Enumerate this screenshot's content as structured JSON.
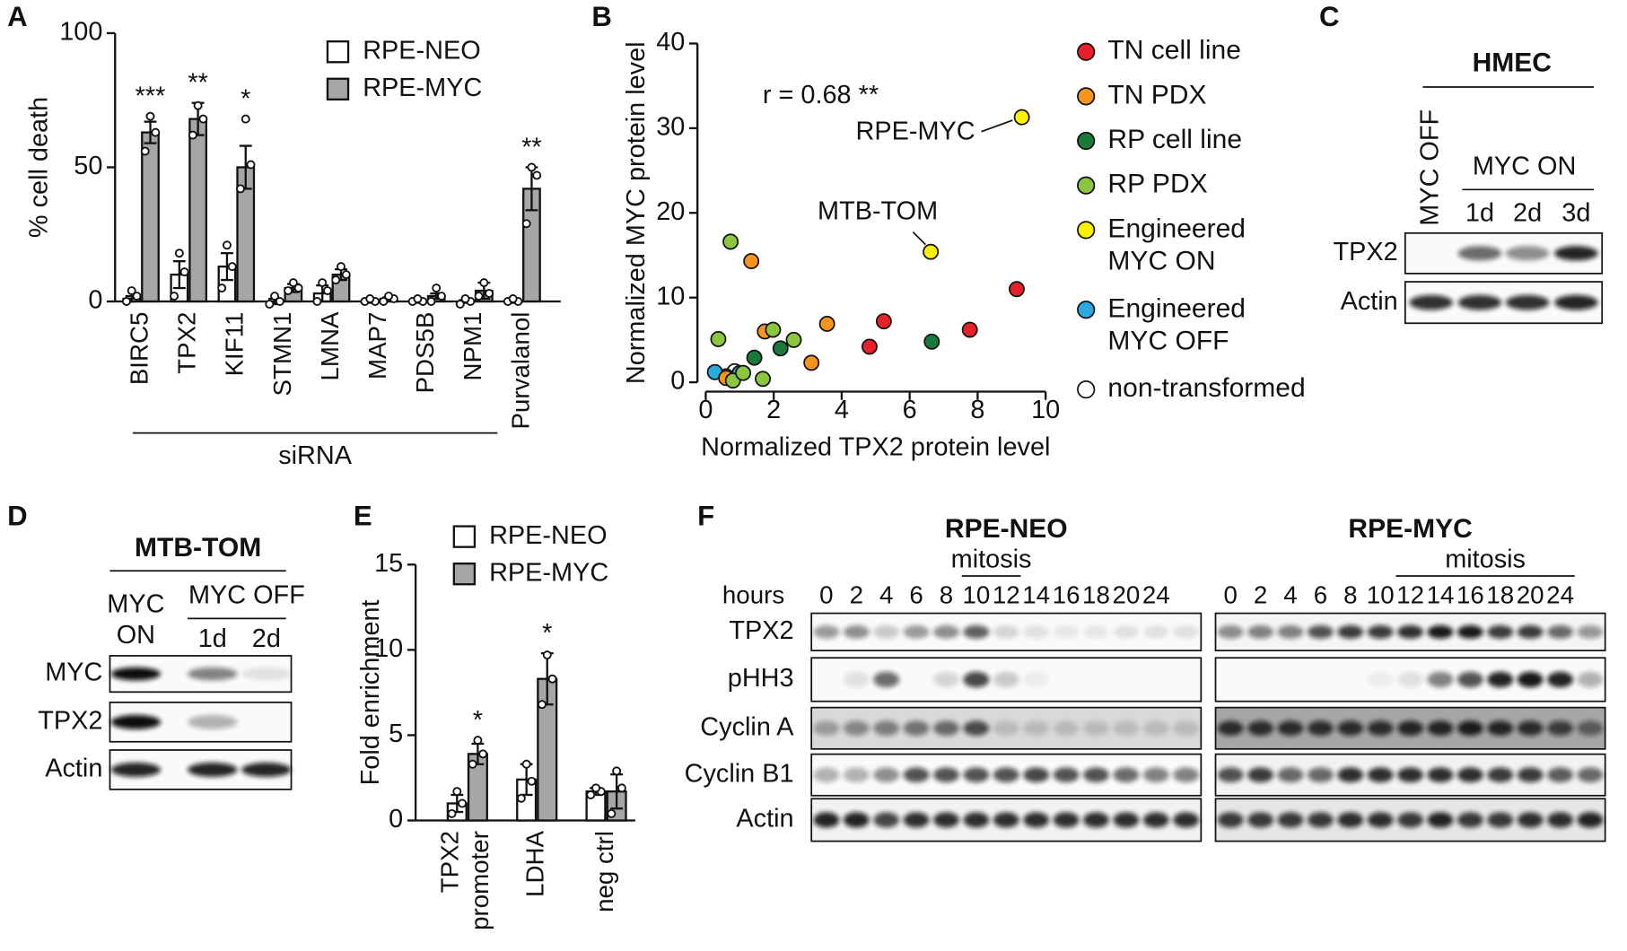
{
  "panels": [
    "A",
    "B",
    "C",
    "D",
    "E",
    "F"
  ],
  "chart_data": [
    {
      "type": "bar",
      "ylabel": "% cell death",
      "categories": [
        "BIRC5",
        "TPX2",
        "KIF11",
        "STMN1",
        "LMNA",
        "MAP7",
        "PDS5B",
        "NPM1",
        "Purvalanol"
      ],
      "group_label": "siRNA",
      "ylim": [
        0,
        100
      ],
      "yticks": [
        0,
        50,
        100
      ],
      "series": [
        {
          "name": "RPE-NEO",
          "color": "#ffffff",
          "values": [
            1,
            10,
            13,
            0,
            3,
            0,
            0,
            0,
            0
          ],
          "errors": [
            1,
            5,
            5,
            1,
            3,
            0.5,
            0.5,
            0.5,
            0.5
          ],
          "points": [
            [
              0,
              2,
              4
            ],
            [
              2,
              11,
              18
            ],
            [
              5,
              13,
              21
            ],
            [
              -1,
              0,
              2
            ],
            [
              0,
              4,
              7
            ],
            [
              0,
              0,
              1
            ],
            [
              0,
              0,
              1
            ],
            [
              -1,
              0,
              1
            ],
            [
              0,
              0,
              1
            ]
          ]
        },
        {
          "name": "RPE-MYC",
          "color": "#a6a6a6",
          "values": [
            63,
            68,
            50,
            5,
            10,
            1,
            2,
            4,
            42
          ],
          "errors": [
            4,
            6,
            8,
            1.5,
            2,
            0.5,
            1,
            3,
            8
          ],
          "points": [
            [
              56,
              63,
              69
            ],
            [
              62,
              68,
              73
            ],
            [
              42,
              51,
              68
            ],
            [
              4,
              5,
              7
            ],
            [
              8,
              10,
              13
            ],
            [
              0,
              1,
              2
            ],
            [
              0,
              2,
              5
            ],
            [
              2,
              3,
              7
            ],
            [
              29,
              47,
              50
            ]
          ]
        }
      ],
      "significance": [
        "***",
        "**",
        "*",
        null,
        null,
        null,
        null,
        null,
        "**"
      ]
    },
    {
      "type": "scatter",
      "xlabel": "Normalized TPX2 protein level",
      "ylabel": "Normalized MYC protein level",
      "xlim": [
        0,
        10
      ],
      "xticks": [
        0,
        2,
        4,
        6,
        8,
        10
      ],
      "ylim": [
        0,
        40
      ],
      "yticks": [
        0,
        10,
        20,
        30,
        40
      ],
      "annotation": "r = 0.68 **",
      "callouts": [
        "RPE-MYC",
        "MTB-TOM"
      ],
      "series": [
        {
          "name": "TN cell line",
          "color": "#e8202a",
          "x": [
            4.82,
            5.24,
            7.77,
            9.15
          ],
          "values": [
            4.2,
            7.2,
            6.2,
            11.0
          ]
        },
        {
          "name": "TN PDX",
          "color": "#f7941d",
          "x": [
            1.34,
            1.74,
            3.57,
            3.11,
            0.6
          ],
          "values": [
            14.3,
            6.0,
            6.9,
            2.3,
            0.5
          ]
        },
        {
          "name": "RP cell line",
          "color": "#1a7a3c",
          "x": [
            1.43,
            2.2,
            6.65
          ],
          "values": [
            2.9,
            4.0,
            4.8
          ]
        },
        {
          "name": "RP PDX",
          "color": "#8cc63f",
          "x": [
            0.73,
            0.37,
            1.98,
            2.59,
            1.68,
            0.8,
            1.1
          ],
          "values": [
            16.6,
            5.1,
            6.2,
            5.0,
            0.4,
            0.2,
            1.1
          ]
        },
        {
          "name": "Engineered\nMYC ON",
          "color": "#fff200",
          "x": [
            9.3,
            6.62
          ],
          "values": [
            31.3,
            15.4
          ]
        },
        {
          "name": "Engineered\nMYC OFF",
          "color": "#29abe2",
          "x": [
            0.27,
            1.0
          ],
          "values": [
            1.2,
            1.1
          ]
        },
        {
          "name": "non-transformed",
          "color": "#ffffff",
          "x": [
            0.85,
            0.6
          ],
          "values": [
            1.3,
            0.7
          ]
        }
      ]
    },
    {
      "type": "bar",
      "ylabel": "Fold enrichment",
      "categories": [
        "TPX2\npromoter",
        "LDHA",
        "neg ctrl"
      ],
      "ylim": [
        0,
        15
      ],
      "yticks": [
        0,
        5,
        10,
        15
      ],
      "series": [
        {
          "name": "RPE-NEO",
          "color": "#ffffff",
          "values": [
            1.0,
            2.4,
            1.7
          ],
          "errors": [
            0.5,
            0.9,
            0.2
          ],
          "points": [
            [
              0.4,
              1.0,
              1.7
            ],
            [
              1.3,
              2.3,
              3.3
            ],
            [
              1.5,
              1.7,
              1.9
            ]
          ]
        },
        {
          "name": "RPE-MYC",
          "color": "#a6a6a6",
          "values": [
            3.9,
            8.3,
            1.7
          ],
          "errors": [
            0.6,
            1.5,
            1.0
          ],
          "points": [
            [
              3.3,
              3.9,
              4.7
            ],
            [
              6.8,
              8.3,
              9.7
            ],
            [
              0.4,
              1.9,
              2.9
            ]
          ]
        }
      ],
      "significance": [
        "*",
        "*",
        null
      ]
    }
  ],
  "blots": {
    "C": {
      "title": "HMEC",
      "off_label": "MYC OFF",
      "on_label": "MYC ON",
      "lanes": [
        "1d",
        "2d",
        "3d"
      ],
      "rows": [
        "TPX2",
        "Actin"
      ]
    },
    "D": {
      "title": "MTB-TOM",
      "on_label": "MYC\nON",
      "off_label": "MYC OFF",
      "lanes": [
        "1d",
        "2d"
      ],
      "rows": [
        "MYC",
        "TPX2",
        "Actin"
      ]
    },
    "F": {
      "hours_label": "hours",
      "hours": [
        0,
        2,
        4,
        6,
        8,
        10,
        12,
        14,
        16,
        18,
        20,
        24
      ],
      "groups": [
        {
          "name": "RPE-NEO",
          "mitosis": "mitosis"
        },
        {
          "name": "RPE-MYC",
          "mitosis": "mitosis"
        }
      ],
      "rows": [
        "TPX2",
        "pHH3",
        "Cyclin A",
        "Cyclin B1",
        "Actin"
      ]
    }
  }
}
